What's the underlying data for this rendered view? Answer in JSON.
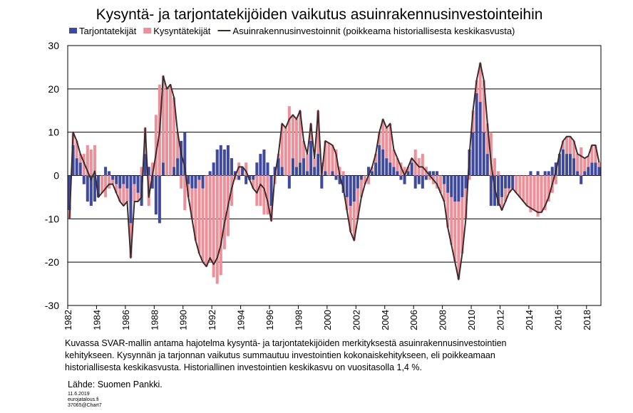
{
  "chart_data": {
    "type": "bar",
    "title": "Kysyntä- ja tarjontatekijöiden vaikutus asuinrakennusinvestointeihin",
    "stacked": true,
    "grid": true,
    "categories": [
      "1982",
      null,
      null,
      null,
      null,
      null,
      null,
      null,
      "1984",
      null,
      null,
      null,
      null,
      null,
      null,
      null,
      "1986",
      null,
      null,
      null,
      null,
      null,
      null,
      null,
      "1988",
      null,
      null,
      null,
      null,
      null,
      null,
      null,
      "1990",
      null,
      null,
      null,
      null,
      null,
      null,
      null,
      "1992",
      null,
      null,
      null,
      null,
      null,
      null,
      null,
      "1994",
      null,
      null,
      null,
      null,
      null,
      null,
      null,
      "1996",
      null,
      null,
      null,
      null,
      null,
      null,
      null,
      "1998",
      null,
      null,
      null,
      null,
      null,
      null,
      null,
      "2000",
      null,
      null,
      null,
      null,
      null,
      null,
      null,
      "2002",
      null,
      null,
      null,
      null,
      null,
      null,
      null,
      "2004",
      null,
      null,
      null,
      null,
      null,
      null,
      null,
      "2006",
      null,
      null,
      null,
      null,
      null,
      null,
      null,
      "2008",
      null,
      null,
      null,
      null,
      null,
      null,
      null,
      "2010",
      null,
      null,
      null,
      null,
      null,
      null,
      null,
      "2012",
      null,
      null,
      null,
      null,
      null,
      null,
      null,
      "2014",
      null,
      null,
      null,
      null,
      null,
      null,
      null,
      "2016",
      null,
      null,
      null,
      null,
      null,
      null,
      null,
      "2018",
      null,
      null,
      null
    ],
    "ylim": [
      -30,
      30
    ],
    "yticks": [
      30,
      20,
      10,
      0,
      -10,
      -20,
      -30
    ],
    "series": [
      {
        "name": "Tarjontatekijät",
        "type": "bar",
        "color": "#3f4a9e",
        "values": [
          -8,
          7,
          4,
          3,
          -2,
          -6,
          -7,
          -6,
          -5,
          0,
          2,
          1,
          -1,
          -2,
          -3,
          -2,
          -3,
          -11,
          -2,
          -4,
          -7,
          5,
          2,
          -3,
          -9,
          -11,
          3,
          0,
          0,
          2,
          4,
          8,
          10,
          -2,
          -3,
          -3,
          -1,
          -3,
          0,
          1,
          3,
          6,
          7,
          6,
          7,
          4,
          1,
          -1,
          2,
          -2,
          -1,
          -1,
          3,
          5,
          6,
          3,
          -7,
          2,
          4,
          2,
          0,
          -3,
          4,
          2,
          3,
          4,
          1,
          8,
          2,
          5,
          -3,
          1,
          0,
          1,
          -1,
          -2,
          -4,
          -5,
          -7,
          -6,
          -3,
          -1,
          0,
          2,
          1,
          3,
          7,
          6,
          4,
          3,
          2,
          1,
          -1,
          -2,
          1,
          3,
          -3,
          -2,
          -3,
          -1,
          1,
          1,
          1,
          0,
          -2,
          -4,
          -5,
          -6,
          -6,
          -5,
          -3,
          6,
          10,
          19,
          17,
          10,
          5,
          -7,
          -7,
          -7,
          -5,
          -3,
          -3,
          -3,
          0,
          0,
          0,
          0,
          1,
          0,
          1,
          0,
          1,
          1,
          2,
          3,
          5,
          6,
          5,
          5,
          4,
          1,
          -2,
          1,
          2,
          3,
          3,
          2
        ]
      },
      {
        "name": "Kysyntätekijät",
        "type": "bar",
        "color": "#ee9099",
        "values": [
          -2,
          3,
          4,
          2,
          5,
          7,
          6,
          7,
          0,
          -4,
          -5,
          -3,
          -1,
          -2,
          -3,
          -5,
          -3,
          -8,
          -4,
          -2,
          2,
          6,
          -7,
          3,
          14,
          21,
          20,
          20,
          21,
          16,
          6,
          -3,
          -8,
          -3,
          -7,
          -12,
          -17,
          -17,
          -21,
          -20,
          -23.5,
          -25,
          -23,
          -17,
          -14,
          -7,
          -1,
          3,
          0,
          3,
          0,
          -2,
          -7,
          -7,
          -9,
          -9,
          -3.5,
          -2,
          1,
          10,
          11,
          16,
          10,
          11,
          12,
          4,
          4,
          4,
          2,
          10,
          3,
          7,
          7.5,
          6,
          6,
          2,
          1,
          -3,
          -6,
          -9,
          -7,
          -4,
          -2,
          -2,
          1,
          2,
          3,
          7,
          7,
          9,
          4,
          3,
          3,
          2,
          1,
          1,
          6,
          4,
          5,
          2,
          -1,
          -2,
          -3,
          -4,
          -4,
          -8,
          -11,
          -14,
          -18,
          -13,
          -7,
          -1,
          5,
          3,
          9,
          12,
          7,
          10,
          4,
          1,
          -3,
          -3,
          -1,
          0,
          -4,
          -5,
          -6,
          -7,
          -8.5,
          -8,
          -9.5,
          -8.5,
          -8,
          -6,
          -4,
          -2,
          0,
          2,
          4,
          4,
          4,
          4,
          6.5,
          3,
          2.5,
          4,
          4,
          1
        ]
      },
      {
        "name": "Asuinrakennusinvestoinnit (poikkeama historiallisesta keskikasvusta)",
        "type": "line",
        "color": "#3b2b2b",
        "values": [
          -10,
          10,
          8,
          5,
          3,
          1,
          -1,
          1,
          -5,
          -4,
          -3,
          -2,
          -2,
          -4,
          -6,
          -7,
          -6,
          -19,
          -6,
          -6,
          -5,
          11,
          -5,
          0,
          5,
          10,
          23,
          20,
          21,
          18,
          10,
          5,
          2,
          -5,
          -10,
          -15,
          -18,
          -20,
          -21,
          -19,
          -20.5,
          -19,
          -16,
          -11,
          -7,
          -3,
          0,
          2,
          2,
          1,
          -1,
          -3,
          -4,
          -2,
          -3,
          -6,
          -10.5,
          0,
          5,
          12,
          11,
          13,
          14,
          13,
          15,
          8,
          5,
          12,
          4,
          15,
          0,
          8,
          7.5,
          7,
          5,
          0,
          -3,
          -8,
          -13,
          -15,
          -10,
          -5,
          -2,
          0,
          2,
          5,
          10,
          13,
          11,
          12,
          6,
          4,
          2,
          0,
          2,
          4,
          3,
          2,
          2,
          1,
          0,
          -1,
          -2,
          -4,
          -6,
          -12,
          -16,
          -20,
          -24,
          -18,
          -10,
          5,
          15,
          22,
          26,
          22,
          12,
          3,
          -3,
          -6,
          -8,
          -6,
          -4,
          -3,
          -4,
          -5,
          -6,
          -7,
          -7.5,
          -8,
          -8.5,
          -8.5,
          -7,
          -5,
          -2,
          1,
          5,
          8,
          9,
          9,
          8,
          5,
          4.5,
          4,
          4.5,
          7,
          7,
          3
        ]
      }
    ],
    "notes": [
      "Kuvassa SVAR-mallin antama hajotelma kysyntä- ja tarjontatekijöiden  merkityksestä asuinrakennusinvestointien",
      "kehitykseen. Kysynnän ja tarjonnan vaikutus summautuu investointien kokonaiskehitykseen, eli poikkeamaan",
      "historiallisesta keskikasvusta. Historiallinen investointien keskikasvu on vuositasolla 1,4 %."
    ],
    "source": "Lähde: Suomen Pankki.",
    "footer": [
      "11.6.2019",
      "eurojatalous.fi",
      "37065@Chart7"
    ]
  }
}
